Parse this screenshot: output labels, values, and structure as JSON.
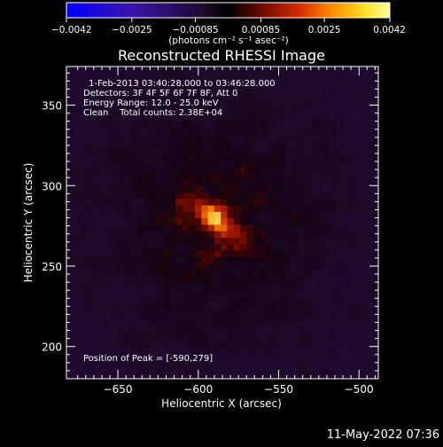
{
  "chart_data": {
    "type": "heatmap",
    "title": "Reconstructed RHESSI Image",
    "xlabel": "Heliocentric X (arcsec)",
    "ylabel": "Heliocentric Y (arcsec)",
    "xlim": [
      -682,
      -488
    ],
    "ylim": [
      180,
      374
    ],
    "x_ticks": [
      {
        "value": -650,
        "label": "−650"
      },
      {
        "value": -600,
        "label": "−600"
      },
      {
        "value": -550,
        "label": "−550"
      },
      {
        "value": -500,
        "label": "−500"
      }
    ],
    "y_ticks": [
      {
        "value": 200,
        "label": "200"
      },
      {
        "value": 250,
        "label": "250"
      },
      {
        "value": 300,
        "label": "300"
      },
      {
        "value": 350,
        "label": "350"
      }
    ],
    "annotations": [
      "1-Feb-2013 03:40:28.000 to 03:46:28.000",
      "Detectors: 3F 4F 5F 6F 7F 8F, Att 0",
      "Energy Range: 12.0 - 25.0 keV",
      "Clean    Total counts: 2.38E+04"
    ],
    "peak_label": "Position of Peak = [-590,279]",
    "peak": [
      -590,
      279
    ],
    "source": {
      "x": -590,
      "y": 279,
      "sigma_major": 13,
      "sigma_minor": 6,
      "angle_deg": -38
    },
    "colorbar": {
      "min": -0.0042,
      "max": 0.0042,
      "tick_values": [
        -0.0042,
        -0.0025,
        -0.00085,
        0.00085,
        0.0025,
        0.0042
      ],
      "tick_labels": [
        "−0.0042",
        "−0.0025",
        "−0.00085",
        "0.00085",
        "0.0025",
        "0.0042"
      ],
      "unit_label": "(photons cm⁻² s⁻¹ asec⁻²)",
      "colors": [
        "#0000ff",
        "#3a14aa",
        "#200a30",
        "#000000",
        "#6a0a00",
        "#d42a00",
        "#ff8c00",
        "#ffdd20",
        "#ffffa0"
      ]
    }
  },
  "footer": {
    "timestamp": "11-May-2022 07:36"
  }
}
